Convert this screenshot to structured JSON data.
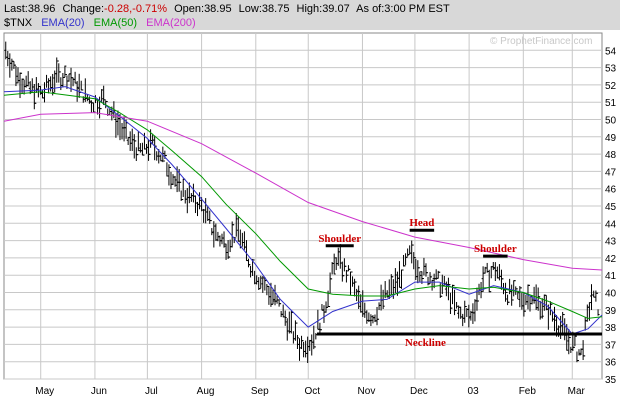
{
  "header": {
    "last_label": "Last:",
    "last": "38.96",
    "change_label": "Change:",
    "change": "-0.28,-0.71%",
    "open_label": "Open:",
    "open": "38.95",
    "low_label": "Low:",
    "low": "38.75",
    "high_label": "High:",
    "high": "39.07",
    "asof_label": "As of:",
    "asof": "3:00 PM EST"
  },
  "legend": {
    "symbol": "$TNX",
    "ema20": "EMA(20)",
    "ema50": "EMA(50)",
    "ema200": "EMA(200)"
  },
  "watermark": "© ProphetFinance.com",
  "colors": {
    "price": "#000000",
    "ema20": "#3333cc",
    "ema50": "#009900",
    "ema200": "#cc33cc",
    "annotation": "#cc0000",
    "grid": "#c8c8c8",
    "up": "#009900",
    "down": "#cc0000",
    "title_bg": "#d8d8d8"
  },
  "chart_data": {
    "type": "line",
    "xlabel": "",
    "ylabel": "",
    "ylim": [
      35,
      55
    ],
    "y_ticks": [
      35,
      36,
      37,
      38,
      39,
      40,
      41,
      42,
      43,
      44,
      45,
      46,
      47,
      48,
      49,
      50,
      51,
      52,
      53,
      54
    ],
    "x_range": [
      "2002-04-10",
      "2003-03-18"
    ],
    "x_ticks": [
      {
        "date": "2002-05-01",
        "label": "May"
      },
      {
        "date": "2002-06-01",
        "label": "Jun"
      },
      {
        "date": "2002-07-01",
        "label": "Jul"
      },
      {
        "date": "2002-08-01",
        "label": "Aug"
      },
      {
        "date": "2002-09-01",
        "label": "Sep"
      },
      {
        "date": "2002-10-01",
        "label": "Oct"
      },
      {
        "date": "2002-11-01",
        "label": "Nov"
      },
      {
        "date": "2002-12-01",
        "label": "Dec"
      },
      {
        "date": "2003-01-01",
        "label": "03"
      },
      {
        "date": "2003-02-01",
        "label": "Feb"
      },
      {
        "date": "2003-03-01",
        "label": "Mar"
      }
    ],
    "grid": true,
    "series": [
      {
        "name": "$TNX",
        "style": "bars",
        "points": [
          [
            "2002-04-11",
            54.0
          ],
          [
            "2002-04-18",
            52.5
          ],
          [
            "2002-04-25",
            51.8
          ],
          [
            "2002-05-02",
            51.5
          ],
          [
            "2002-05-09",
            52.4
          ],
          [
            "2002-05-16",
            52.6
          ],
          [
            "2002-05-23",
            51.8
          ],
          [
            "2002-05-30",
            51.0
          ],
          [
            "2002-06-06",
            51.2
          ],
          [
            "2002-06-13",
            50.0
          ],
          [
            "2002-06-20",
            48.8
          ],
          [
            "2002-06-27",
            48.2
          ],
          [
            "2002-07-04",
            48.6
          ],
          [
            "2002-07-11",
            47.6
          ],
          [
            "2002-07-18",
            46.2
          ],
          [
            "2002-07-25",
            45.5
          ],
          [
            "2002-08-01",
            45.0
          ],
          [
            "2002-08-08",
            43.5
          ],
          [
            "2002-08-15",
            42.8
          ],
          [
            "2002-08-22",
            43.6
          ],
          [
            "2002-08-29",
            41.6
          ],
          [
            "2002-09-05",
            40.5
          ],
          [
            "2002-09-12",
            39.6
          ],
          [
            "2002-09-19",
            38.3
          ],
          [
            "2002-09-26",
            37.0
          ],
          [
            "2002-10-03",
            37.2
          ],
          [
            "2002-10-10",
            39.0
          ],
          [
            "2002-10-17",
            42.0
          ],
          [
            "2002-10-24",
            41.0
          ],
          [
            "2002-10-31",
            39.2
          ],
          [
            "2002-11-07",
            38.6
          ],
          [
            "2002-11-14",
            39.8
          ],
          [
            "2002-11-21",
            40.6
          ],
          [
            "2002-11-28",
            42.2
          ],
          [
            "2002-12-05",
            41.2
          ],
          [
            "2002-12-12",
            40.8
          ],
          [
            "2002-12-19",
            40.2
          ],
          [
            "2002-12-26",
            38.8
          ],
          [
            "2003-01-02",
            38.6
          ],
          [
            "2003-01-09",
            40.8
          ],
          [
            "2003-01-16",
            41.4
          ],
          [
            "2003-01-23",
            40.0
          ],
          [
            "2003-01-30",
            39.6
          ],
          [
            "2003-02-06",
            39.8
          ],
          [
            "2003-02-13",
            39.2
          ],
          [
            "2003-02-20",
            38.4
          ],
          [
            "2003-02-27",
            37.2
          ],
          [
            "2003-03-06",
            36.4
          ],
          [
            "2003-03-12",
            39.8
          ],
          [
            "2003-03-17",
            39.0
          ]
        ]
      },
      {
        "name": "EMA(20)",
        "points": [
          [
            "2002-04-10",
            51.6
          ],
          [
            "2002-05-01",
            51.7
          ],
          [
            "2002-05-15",
            51.9
          ],
          [
            "2002-06-01",
            51.3
          ],
          [
            "2002-06-15",
            50.2
          ],
          [
            "2002-07-01",
            48.9
          ],
          [
            "2002-07-15",
            47.4
          ],
          [
            "2002-08-01",
            45.4
          ],
          [
            "2002-08-15",
            43.7
          ],
          [
            "2002-09-01",
            41.6
          ],
          [
            "2002-09-15",
            39.6
          ],
          [
            "2002-10-01",
            38.0
          ],
          [
            "2002-10-15",
            38.9
          ],
          [
            "2002-11-01",
            39.5
          ],
          [
            "2002-11-15",
            39.6
          ],
          [
            "2002-12-01",
            40.6
          ],
          [
            "2002-12-15",
            40.6
          ],
          [
            "2003-01-01",
            39.9
          ],
          [
            "2003-01-15",
            40.4
          ],
          [
            "2003-02-01",
            40.0
          ],
          [
            "2003-02-15",
            39.2
          ],
          [
            "2003-03-01",
            37.6
          ],
          [
            "2003-03-10",
            37.9
          ],
          [
            "2003-03-18",
            38.7
          ]
        ]
      },
      {
        "name": "EMA(50)",
        "points": [
          [
            "2002-04-10",
            51.4
          ],
          [
            "2002-05-01",
            51.6
          ],
          [
            "2002-06-01",
            51.2
          ],
          [
            "2002-06-15",
            50.4
          ],
          [
            "2002-07-01",
            49.4
          ],
          [
            "2002-07-15",
            48.2
          ],
          [
            "2002-08-01",
            46.7
          ],
          [
            "2002-08-15",
            45.1
          ],
          [
            "2002-09-01",
            43.4
          ],
          [
            "2002-09-15",
            41.8
          ],
          [
            "2002-10-01",
            40.2
          ],
          [
            "2002-10-15",
            39.9
          ],
          [
            "2002-11-01",
            39.8
          ],
          [
            "2002-11-15",
            39.8
          ],
          [
            "2002-12-01",
            40.2
          ],
          [
            "2002-12-15",
            40.4
          ],
          [
            "2003-01-01",
            40.2
          ],
          [
            "2003-01-15",
            40.3
          ],
          [
            "2003-02-01",
            40.0
          ],
          [
            "2003-02-15",
            39.5
          ],
          [
            "2003-03-01",
            38.9
          ],
          [
            "2003-03-10",
            38.5
          ],
          [
            "2003-03-18",
            38.6
          ]
        ]
      },
      {
        "name": "EMA(200)",
        "points": [
          [
            "2002-04-10",
            49.9
          ],
          [
            "2002-05-01",
            50.3
          ],
          [
            "2002-06-01",
            50.4
          ],
          [
            "2002-07-01",
            49.9
          ],
          [
            "2002-08-01",
            48.6
          ],
          [
            "2002-09-01",
            46.9
          ],
          [
            "2002-10-01",
            45.2
          ],
          [
            "2002-11-01",
            44.1
          ],
          [
            "2002-12-01",
            43.2
          ],
          [
            "2003-01-01",
            42.6
          ],
          [
            "2003-02-01",
            41.9
          ],
          [
            "2003-03-01",
            41.4
          ],
          [
            "2003-03-18",
            41.3
          ]
        ]
      }
    ],
    "annotations": [
      {
        "text": "Shoulder",
        "date": "2002-10-19",
        "value": 42.7,
        "bar_from": "2002-10-11",
        "bar_to": "2002-10-27"
      },
      {
        "text": "Head",
        "date": "2002-12-05",
        "value": 43.6,
        "bar_from": "2002-11-28",
        "bar_to": "2002-12-12"
      },
      {
        "text": "Shoulder",
        "date": "2003-01-16",
        "value": 42.1,
        "bar_from": "2003-01-09",
        "bar_to": "2003-01-23"
      },
      {
        "text": "Neckline",
        "date": "2002-12-07",
        "value": 37.6,
        "line_from": "2002-10-06",
        "line_to": "2003-03-18"
      }
    ]
  }
}
